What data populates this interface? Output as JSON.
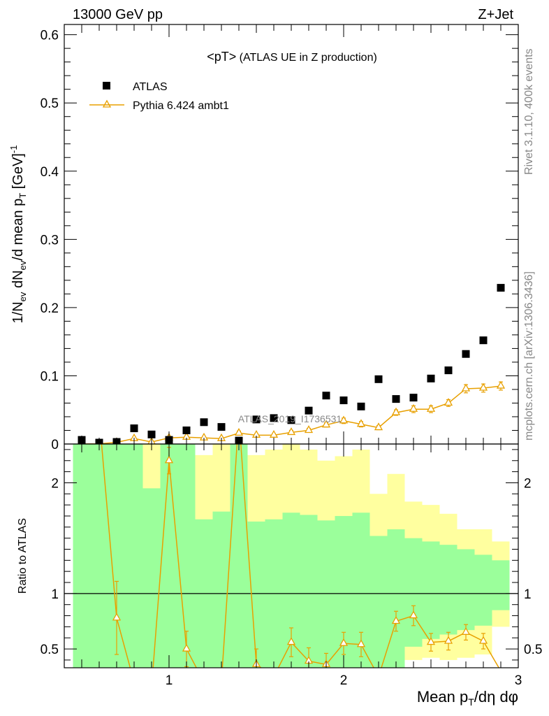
{
  "header": {
    "left": "13000 GeV pp",
    "right": "Z+Jet"
  },
  "side_labels": {
    "rivet": "Rivet 3.1.10,  400k events",
    "mcplots": "mcplots.cern.ch [arXiv:1306.3436]"
  },
  "watermark": "ATLAS_2019_I1736531",
  "colors": {
    "mc": "#e8a000",
    "green": "#9bff9b",
    "yellow": "#ffff9f",
    "data": "#000000"
  },
  "chart_data": [
    {
      "type": "scatter",
      "title": "<pT>",
      "title_suffix": " (ATLAS UE in Z production)",
      "xlabel": "Mean p_T/dη dφ",
      "ylabel": "1/N_ev dN_ev/d mean p_T [GeV]^-1",
      "xlim": [
        0.4,
        3.0
      ],
      "ylim": [
        0,
        0.615
      ],
      "yticks": [
        0,
        0.1,
        0.2,
        0.3,
        0.4,
        0.5,
        0.6
      ],
      "ytick_labels": [
        "0",
        "0.1",
        "0.2",
        "0.3",
        "0.4",
        "0.5",
        "0.6"
      ],
      "legend_position": "top-left",
      "legend": [
        "ATLAS",
        "Pythia 6.424 ambt1"
      ],
      "series": [
        {
          "name": "ATLAS",
          "marker": "square",
          "x": [
            0.5,
            0.6,
            0.7,
            0.8,
            0.9,
            1.0,
            1.1,
            1.2,
            1.3,
            1.4,
            1.5,
            1.6,
            1.7,
            1.8,
            1.9,
            2.0,
            2.1,
            2.2,
            2.3,
            2.4,
            2.5,
            2.6,
            2.7,
            2.8,
            2.9
          ],
          "y": [
            0.006,
            0.002,
            0.003,
            0.023,
            0.014,
            0.006,
            0.02,
            0.032,
            0.025,
            0.005,
            0.036,
            0.038,
            0.035,
            0.049,
            0.071,
            0.064,
            0.055,
            0.095,
            0.066,
            0.068,
            0.096,
            0.108,
            0.132,
            0.152,
            0.229
          ]
        },
        {
          "name": "Pythia 6.424 ambt1",
          "marker": "triangle-open",
          "x": [
            0.5,
            0.6,
            0.7,
            0.8,
            0.9,
            1.0,
            1.1,
            1.2,
            1.3,
            1.4,
            1.5,
            1.6,
            1.7,
            1.8,
            1.9,
            2.0,
            2.1,
            2.2,
            2.3,
            2.4,
            2.5,
            2.6,
            2.7,
            2.8,
            2.9
          ],
          "y": [
            0.0,
            0.0003,
            0.0024,
            0.008,
            0.003,
            0.009,
            0.01,
            0.009,
            0.008,
            0.016,
            0.013,
            0.013,
            0.017,
            0.02,
            0.028,
            0.034,
            0.029,
            0.024,
            0.046,
            0.051,
            0.051,
            0.06,
            0.081,
            0.082,
            0.085
          ],
          "yerr": [
            0.0,
            0.0003,
            0.001,
            0.002,
            0.001,
            0.002,
            0.002,
            0.002,
            0.002,
            0.003,
            0.002,
            0.002,
            0.003,
            0.003,
            0.003,
            0.004,
            0.004,
            0.003,
            0.004,
            0.005,
            0.005,
            0.005,
            0.006,
            0.006,
            0.006
          ]
        }
      ]
    },
    {
      "type": "line",
      "ylabel": "Ratio to ATLAS",
      "xlabel": "Mean p_T/dη dφ",
      "xlim": [
        0.4,
        3.0
      ],
      "ylim": [
        0.33,
        2.35
      ],
      "yticks": [
        0.5,
        1,
        2
      ],
      "ytick_labels": [
        "0.5",
        "1",
        "2"
      ],
      "xticks": [
        1,
        2,
        3
      ],
      "xtick_labels": [
        "1",
        "2",
        "3"
      ],
      "bins": {
        "edges": [
          0.45,
          0.55,
          0.65,
          0.75,
          0.85,
          0.95,
          1.05,
          1.15,
          1.25,
          1.35,
          1.45,
          1.55,
          1.65,
          1.75,
          1.85,
          1.95,
          2.05,
          2.15,
          2.25,
          2.35,
          2.45,
          2.55,
          2.65,
          2.75,
          2.85,
          2.95
        ],
        "green_up": [
          2.35,
          2.35,
          2.35,
          2.35,
          1.95,
          2.35,
          2.35,
          1.67,
          1.74,
          2.35,
          1.65,
          1.67,
          1.73,
          1.71,
          1.66,
          1.7,
          1.73,
          1.52,
          1.58,
          1.5,
          1.47,
          1.44,
          1.4,
          1.35,
          1.3
        ],
        "green_lo": [
          0.33,
          0.33,
          0.33,
          0.33,
          0.33,
          0.33,
          0.33,
          0.33,
          0.33,
          0.33,
          0.33,
          0.33,
          0.33,
          0.33,
          0.33,
          0.33,
          0.33,
          0.33,
          0.33,
          0.52,
          0.59,
          0.63,
          0.67,
          0.71,
          0.85
        ],
        "yellow_up": [
          2.35,
          2.35,
          2.35,
          2.35,
          2.35,
          2.35,
          2.35,
          2.25,
          2.35,
          2.35,
          2.25,
          2.3,
          2.4,
          2.3,
          2.2,
          2.24,
          2.3,
          1.9,
          2.08,
          1.83,
          1.8,
          1.72,
          1.58,
          1.58,
          1.47
        ],
        "yellow_lo": [
          0.33,
          0.33,
          0.33,
          0.33,
          0.33,
          0.33,
          0.33,
          0.33,
          0.33,
          0.33,
          0.33,
          0.33,
          0.33,
          0.33,
          0.33,
          0.33,
          0.33,
          0.33,
          0.33,
          0.4,
          0.42,
          0.4,
          0.42,
          0.45,
          0.7
        ]
      },
      "series": [
        {
          "name": "Pythia 6.424 ambt1",
          "x": [
            0.6,
            0.7,
            0.8,
            0.9,
            1.0,
            1.1,
            1.2,
            1.3,
            1.4,
            1.5,
            1.6,
            1.7,
            1.8,
            1.9,
            2.0,
            2.1,
            2.2,
            2.3,
            2.4,
            2.5,
            2.6,
            2.7,
            2.8,
            2.9
          ],
          "y": [
            2.6,
            0.78,
            0.2,
            0.15,
            2.2,
            0.5,
            0.2,
            0.2,
            2.6,
            0.36,
            0.25,
            0.56,
            0.39,
            0.36,
            0.55,
            0.54,
            0.25,
            0.75,
            0.8,
            0.56,
            0.57,
            0.65,
            0.57,
            0.3
          ],
          "yerr": [
            0.0,
            0.33,
            0.0,
            0.0,
            0.12,
            0.16,
            0.0,
            0.0,
            0.0,
            0.14,
            0.0,
            0.13,
            0.12,
            0.1,
            0.1,
            0.11,
            0.0,
            0.09,
            0.09,
            0.08,
            0.08,
            0.07,
            0.07,
            0.0
          ],
          "markers": [
            false,
            true,
            false,
            false,
            true,
            true,
            false,
            false,
            false,
            true,
            false,
            true,
            true,
            true,
            true,
            true,
            false,
            true,
            true,
            true,
            true,
            true,
            true,
            false
          ]
        }
      ]
    }
  ]
}
